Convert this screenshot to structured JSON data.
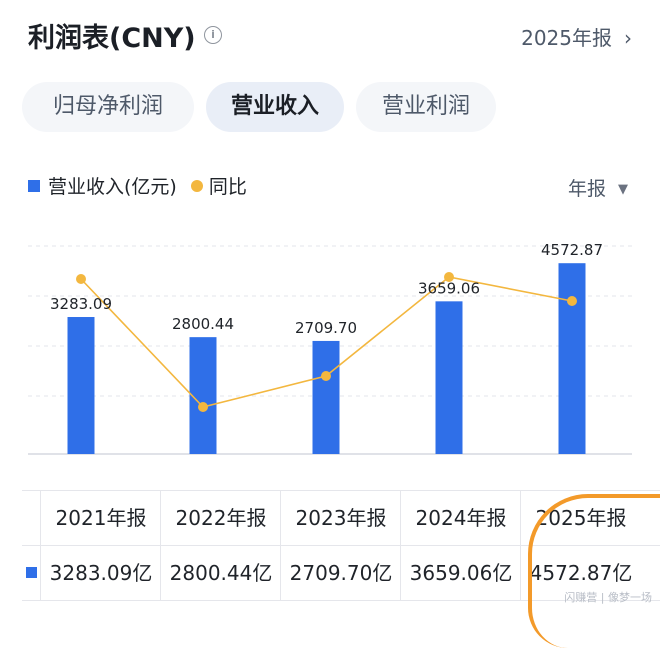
{
  "header": {
    "title": "利润表(CNY)",
    "info_icon": "i",
    "report_label": "2025年报",
    "chevron": "›"
  },
  "tabs": [
    {
      "label": "归母净利润",
      "active": false
    },
    {
      "label": "营业收入",
      "active": true
    },
    {
      "label": "营业利润",
      "active": false
    }
  ],
  "legend": {
    "series1": "营业收入(亿元)",
    "series2": "同比"
  },
  "period": {
    "label": "年报",
    "caret": "▼"
  },
  "colors": {
    "bar": "#2f6fe8",
    "line": "#f3b73f",
    "grid": "#e3e6eb"
  },
  "chart_data": {
    "type": "bar",
    "categories": [
      "2021年报",
      "2022年报",
      "2023年报",
      "2024年报",
      "2025年报"
    ],
    "series": [
      {
        "name": "营业收入(亿元)",
        "values": [
          3283.09,
          2800.44,
          2709.7,
          3659.06,
          4572.87
        ],
        "labels": [
          "3283.09",
          "2800.44",
          "2709.70",
          "3659.06",
          "4572.87"
        ]
      },
      {
        "name": "同比",
        "type": "line"
      }
    ],
    "ylim": [
      0,
      5000
    ],
    "grid": true
  },
  "table": {
    "headers": [
      "2021年报",
      "2022年报",
      "2023年报",
      "2024年报",
      "2025年报"
    ],
    "values": [
      "3283.09亿",
      "2800.44亿",
      "2709.70亿",
      "3659.06亿",
      "4572.87亿"
    ]
  },
  "watermark": "闪赚营 | 像梦一场"
}
